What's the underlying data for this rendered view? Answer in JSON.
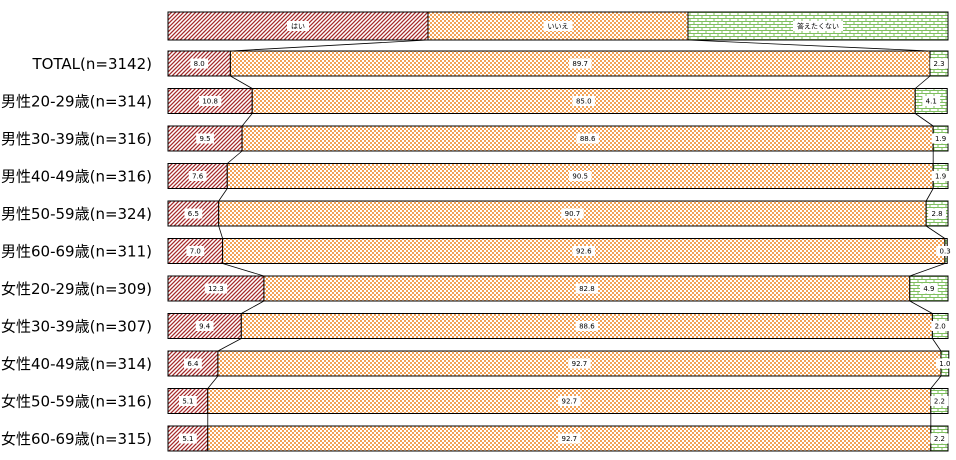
{
  "chart_data": {
    "type": "bar",
    "stacked": "100%",
    "orientation": "horizontal",
    "legend_position": "top",
    "categories": [
      "TOTAL(n=3142)",
      "男性20-29歳(n=314)",
      "男性30-39歳(n=316)",
      "男性40-49歳(n=316)",
      "男性50-59歳(n=324)",
      "男性60-69歳(n=311)",
      "女性20-29歳(n=309)",
      "女性30-39歳(n=307)",
      "女性40-49歳(n=314)",
      "女性50-59歳(n=316)",
      "女性60-69歳(n=315)"
    ],
    "series": [
      {
        "name": "はい",
        "color": "#a52a2a",
        "pattern": "diagonal-hatch",
        "values": [
          8.0,
          10.8,
          9.5,
          7.6,
          6.5,
          7.0,
          12.3,
          9.4,
          6.4,
          5.1,
          5.1
        ],
        "labels": [
          "8.0",
          "10.8",
          "9.5",
          "7.6",
          "6.5",
          "7.0",
          "12.3",
          "9.4",
          "6.4",
          "5.1",
          "5.1"
        ]
      },
      {
        "name": "いいえ",
        "color": "#f0a050",
        "pattern": "checker",
        "values": [
          89.7,
          85.0,
          88.6,
          90.5,
          90.7,
          92.6,
          82.8,
          88.6,
          92.7,
          92.7,
          92.7
        ],
        "labels": [
          "89.7",
          "85.0",
          "88.6",
          "90.5",
          "90.7",
          "92.6",
          "82.8",
          "88.6",
          "92.7",
          "92.7",
          "92.7"
        ]
      },
      {
        "name": "答えたくない",
        "color": "#7fbf5f",
        "pattern": "brick",
        "values": [
          2.3,
          4.1,
          1.9,
          1.9,
          2.8,
          0.3,
          4.9,
          2.0,
          1.0,
          2.2,
          2.2
        ],
        "labels": [
          "2.3",
          "4.1",
          "1.9",
          "1.9",
          "2.8",
          "0.3",
          "4.9",
          "2.0",
          "1.0",
          "2.2",
          "2.2"
        ]
      }
    ]
  }
}
